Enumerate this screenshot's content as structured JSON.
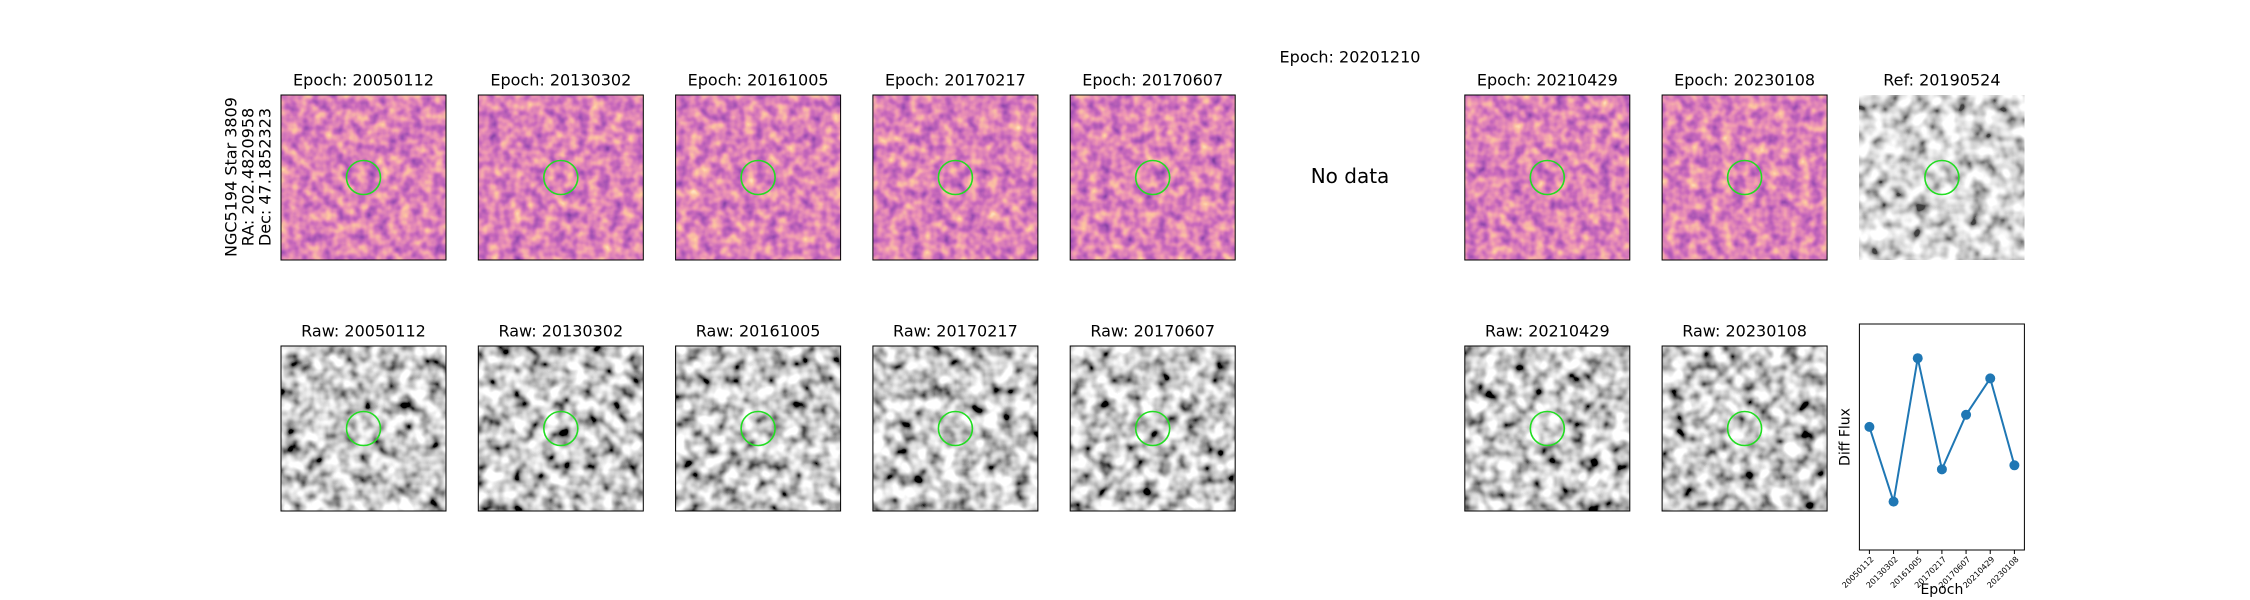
{
  "star_label": [
    "NGC5194 Star 3809",
    "RA: 202.4820958",
    "Dec: 47.1852323"
  ],
  "epochs": [
    {
      "diff_title": "Epoch: 20050112",
      "raw_title": "Raw: 20050112"
    },
    {
      "diff_title": "Epoch: 20130302",
      "raw_title": "Raw: 20130302"
    },
    {
      "diff_title": "Epoch: 20161005",
      "raw_title": "Raw: 20161005"
    },
    {
      "diff_title": "Epoch: 20170217",
      "raw_title": "Raw: 20170217"
    },
    {
      "diff_title": "Epoch: 20170607",
      "raw_title": "Raw: 20170607"
    },
    {
      "diff_title": "Epoch: 20201210",
      "no_data": "No data"
    },
    {
      "diff_title": "Epoch: 20210429",
      "raw_title": "Raw: 20210429"
    },
    {
      "diff_title": "Epoch: 20230108",
      "raw_title": "Raw: 20230108"
    }
  ],
  "ref_title": "Ref: 20190524",
  "chart_data": {
    "type": "line",
    "y_label": "Diff Flux",
    "x_label": "Epoch",
    "categories": [
      "20050112",
      "20130302",
      "20161005",
      "20170217",
      "20170607",
      "20210429",
      "20230108"
    ],
    "values": [
      0.55,
      0.18,
      0.89,
      0.34,
      0.61,
      0.79,
      0.36
    ],
    "color": "#1f77b4",
    "ylim": [
      0,
      1
    ]
  }
}
